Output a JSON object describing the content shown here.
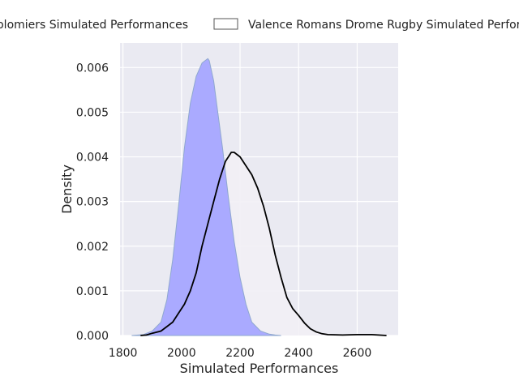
{
  "chart_data": {
    "type": "area",
    "xlabel": "Simulated Performances",
    "ylabel": "Density",
    "xlim": [
      1790,
      2740
    ],
    "ylim": [
      0,
      0.00655
    ],
    "x_ticks": [
      1800,
      2000,
      2200,
      2400,
      2600
    ],
    "y_ticks": [
      0,
      0.001,
      0.002,
      0.003,
      0.004,
      0.005,
      0.006
    ],
    "x_tick_labels": [
      "1800",
      "2000",
      "2200",
      "2400",
      "2600"
    ],
    "y_tick_labels": [
      "0.000",
      "0.001",
      "0.002",
      "0.003",
      "0.004",
      "0.005",
      "0.006"
    ],
    "grid": true,
    "legend_position": "top",
    "legend": [
      "Colomiers Simulated Performances",
      "Valence Romans Drome Rugby Simulated Performances"
    ],
    "colors": {
      "plot_bg": "#eaeaf2",
      "grid": "#ffffff",
      "series1_fill": "#aaaaff",
      "series1_edge": "#8fa8cf",
      "series2_line": "#000000",
      "series2_fill": "#f2f0f5"
    },
    "series": [
      {
        "name": "Colomiers Simulated Performances",
        "style": "filled",
        "x": [
          1830,
          1870,
          1900,
          1930,
          1950,
          1970,
          1990,
          2010,
          2030,
          2050,
          2070,
          2080,
          2090,
          2095,
          2100,
          2110,
          2120,
          2140,
          2160,
          2180,
          2200,
          2220,
          2240,
          2270,
          2300,
          2320,
          2340
        ],
        "y": [
          0,
          2e-05,
          0.0001,
          0.0003,
          0.0008,
          0.0017,
          0.0029,
          0.0042,
          0.0052,
          0.0058,
          0.0061,
          0.00615,
          0.0062,
          0.00615,
          0.006,
          0.0057,
          0.0052,
          0.0042,
          0.0031,
          0.0021,
          0.0013,
          0.0007,
          0.0003,
          0.0001,
          3e-05,
          1e-05,
          0
        ]
      },
      {
        "name": "Valence Romans Drome Rugby Simulated Performances",
        "style": "line",
        "x": [
          1860,
          1880,
          1900,
          1930,
          1950,
          1970,
          1990,
          2010,
          2030,
          2050,
          2070,
          2090,
          2110,
          2130,
          2150,
          2170,
          2180,
          2200,
          2220,
          2240,
          2260,
          2280,
          2300,
          2320,
          2340,
          2360,
          2380,
          2400,
          2420,
          2440,
          2460,
          2480,
          2500,
          2550,
          2600,
          2650,
          2700
        ],
        "y": [
          0,
          1e-05,
          5e-05,
          0.0001,
          0.0002,
          0.0003,
          0.0005,
          0.0007,
          0.001,
          0.0014,
          0.002,
          0.0025,
          0.003,
          0.0035,
          0.0039,
          0.0041,
          0.0041,
          0.004,
          0.0038,
          0.0036,
          0.0033,
          0.0029,
          0.0024,
          0.0018,
          0.0013,
          0.00085,
          0.0006,
          0.00045,
          0.00028,
          0.00015,
          8e-05,
          4e-05,
          2e-05,
          1e-05,
          2e-05,
          2e-05,
          0
        ]
      }
    ]
  }
}
